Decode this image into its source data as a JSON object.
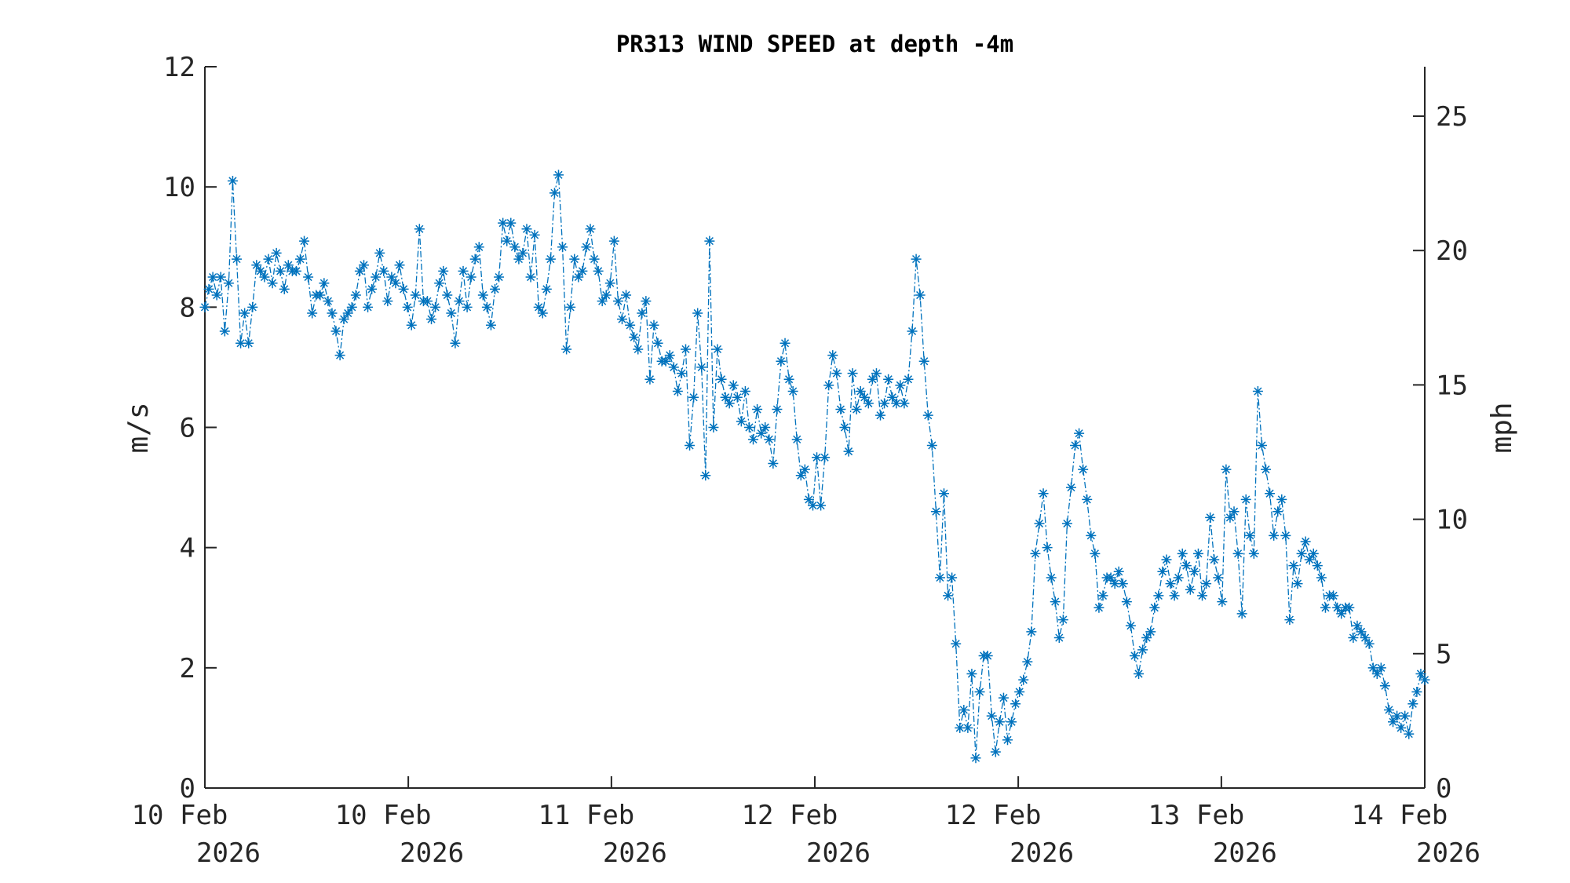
{
  "chart_data": {
    "type": "line",
    "title": "PR313 WIND SPEED at depth -4m",
    "ylabel": "m/s",
    "ylabel_right": "mph",
    "ylim": [
      0,
      12
    ],
    "ylim_right": [
      0,
      26.84
    ],
    "yticks": [
      0,
      2,
      4,
      6,
      8,
      10,
      12
    ],
    "yticks_right": [
      0,
      5,
      10,
      15,
      20,
      25
    ],
    "xlim_days": [
      0,
      4
    ],
    "xticks": [
      {
        "day": 0,
        "line1": "10 Feb",
        "line2": "2026"
      },
      {
        "day": 0.667,
        "line1": "10 Feb",
        "line2": "2026"
      },
      {
        "day": 1.333,
        "line1": "11 Feb",
        "line2": "2026"
      },
      {
        "day": 2.0,
        "line1": "12 Feb",
        "line2": "2026"
      },
      {
        "day": 2.667,
        "line1": "12 Feb",
        "line2": "2026"
      },
      {
        "day": 3.333,
        "line1": "13 Feb",
        "line2": "2026"
      },
      {
        "day": 4.0,
        "line1": "14 Feb",
        "line2": "2026"
      }
    ],
    "grid": false,
    "series": [
      {
        "name": "wind speed",
        "color": "#0072BD",
        "marker": "asterisk",
        "line_style": "dash-dot",
        "values": [
          8.0,
          8.3,
          8.5,
          8.2,
          8.5,
          7.6,
          8.4,
          10.1,
          8.8,
          7.4,
          7.9,
          7.4,
          8.0,
          8.7,
          8.6,
          8.5,
          8.8,
          8.4,
          8.9,
          8.6,
          8.3,
          8.7,
          8.6,
          8.6,
          8.8,
          9.1,
          8.5,
          7.9,
          8.2,
          8.2,
          8.4,
          8.1,
          7.9,
          7.6,
          7.2,
          7.8,
          7.9,
          8.0,
          8.2,
          8.6,
          8.7,
          8.0,
          8.3,
          8.5,
          8.9,
          8.6,
          8.1,
          8.5,
          8.4,
          8.7,
          8.3,
          8.0,
          7.7,
          8.2,
          9.3,
          8.1,
          8.1,
          7.8,
          8.0,
          8.4,
          8.6,
          8.2,
          7.9,
          7.4,
          8.1,
          8.6,
          8.0,
          8.5,
          8.8,
          9.0,
          8.2,
          8.0,
          7.7,
          8.3,
          8.5,
          9.4,
          9.1,
          9.4,
          9.0,
          8.8,
          8.9,
          9.3,
          8.5,
          9.2,
          8.0,
          7.9,
          8.3,
          8.8,
          9.9,
          10.2,
          9.0,
          7.3,
          8.0,
          8.8,
          8.5,
          8.6,
          9.0,
          9.3,
          8.8,
          8.6,
          8.1,
          8.2,
          8.4,
          9.1,
          8.1,
          7.8,
          8.2,
          7.7,
          7.5,
          7.3,
          7.9,
          8.1,
          6.8,
          7.7,
          7.4,
          7.1,
          7.1,
          7.2,
          7.0,
          6.6,
          6.9,
          7.3,
          5.7,
          6.5,
          7.9,
          7.0,
          5.2,
          9.1,
          6.0,
          7.3,
          6.8,
          6.5,
          6.4,
          6.7,
          6.5,
          6.1,
          6.6,
          6.0,
          5.8,
          6.3,
          5.9,
          6.0,
          5.8,
          5.4,
          6.3,
          7.1,
          7.4,
          6.8,
          6.6,
          5.8,
          5.2,
          5.3,
          4.8,
          4.7,
          5.5,
          4.7,
          5.5,
          6.7,
          7.2,
          6.9,
          6.3,
          6.0,
          5.6,
          6.9,
          6.3,
          6.6,
          6.5,
          6.4,
          6.8,
          6.9,
          6.2,
          6.4,
          6.8,
          6.5,
          6.4,
          6.7,
          6.4,
          6.8,
          7.6,
          8.8,
          8.2,
          7.1,
          6.2,
          5.7,
          4.6,
          3.5,
          4.9,
          3.2,
          3.5,
          2.4,
          1.0,
          1.3,
          1.0,
          1.9,
          0.5,
          1.6,
          2.2,
          2.2,
          1.2,
          0.6,
          1.1,
          1.5,
          0.8,
          1.1,
          1.4,
          1.6,
          1.8,
          2.1,
          2.6,
          3.9,
          4.4,
          4.9,
          4.0,
          3.5,
          3.1,
          2.5,
          2.8,
          4.4,
          5.0,
          5.7,
          5.9,
          5.3,
          4.8,
          4.2,
          3.9,
          3.0,
          3.2,
          3.5,
          3.5,
          3.4,
          3.6,
          3.4,
          3.1,
          2.7,
          2.2,
          1.9,
          2.3,
          2.5,
          2.6,
          3.0,
          3.2,
          3.6,
          3.8,
          3.4,
          3.2,
          3.5,
          3.9,
          3.7,
          3.3,
          3.6,
          3.9,
          3.2,
          3.4,
          4.5,
          3.8,
          3.5,
          3.1,
          5.3,
          4.5,
          4.6,
          3.9,
          2.9,
          4.8,
          4.2,
          3.9,
          6.6,
          5.7,
          5.3,
          4.9,
          4.2,
          4.6,
          4.8,
          4.2,
          2.8,
          3.7,
          3.4,
          3.9,
          4.1,
          3.8,
          3.9,
          3.7,
          3.5,
          3.0,
          3.2,
          3.2,
          3.0,
          2.9,
          3.0,
          3.0,
          2.5,
          2.7,
          2.6,
          2.5,
          2.4,
          2.0,
          1.9,
          2.0,
          1.7,
          1.3,
          1.1,
          1.2,
          1.0,
          1.2,
          0.9,
          1.4,
          1.6,
          1.9,
          1.8
        ]
      }
    ]
  }
}
